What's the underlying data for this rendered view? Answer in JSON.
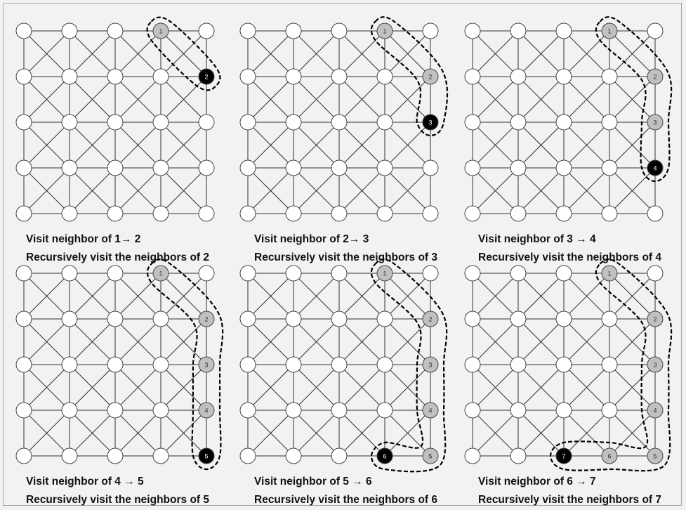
{
  "diagram": {
    "grid": {
      "cols": 5,
      "rows": 5
    },
    "colors": {
      "background": "#f2f2f2",
      "node_unvisited": "#ffffff",
      "node_visited": "#c0c0c0",
      "node_current": "#000000",
      "edge": "#333333",
      "outline": "#000000"
    },
    "panels": [
      {
        "step": 1,
        "caption_line1": "Visit neighbor of 1→ 2",
        "caption_line2": "Recursively visit the neighbors of 2",
        "path": [
          {
            "label": "1",
            "col": 3,
            "row": 0,
            "state": "visited"
          },
          {
            "label": "2",
            "col": 4,
            "row": 1,
            "state": "current"
          }
        ]
      },
      {
        "step": 2,
        "caption_line1": "Visit neighbor of 2→ 3",
        "caption_line2": "Recursively visit the neighbors of 3",
        "path": [
          {
            "label": "1",
            "col": 3,
            "row": 0,
            "state": "visited"
          },
          {
            "label": "2",
            "col": 4,
            "row": 1,
            "state": "visited"
          },
          {
            "label": "3",
            "col": 4,
            "row": 2,
            "state": "current"
          }
        ]
      },
      {
        "step": 3,
        "caption_line1": "Visit neighbor of 3 → 4",
        "caption_line2": "Recursively visit the neighbors of 4",
        "path": [
          {
            "label": "1",
            "col": 3,
            "row": 0,
            "state": "visited"
          },
          {
            "label": "2",
            "col": 4,
            "row": 1,
            "state": "visited"
          },
          {
            "label": "3",
            "col": 4,
            "row": 2,
            "state": "visited"
          },
          {
            "label": "4",
            "col": 4,
            "row": 3,
            "state": "current"
          }
        ]
      },
      {
        "step": 4,
        "caption_line1": "Visit neighbor of 4 → 5",
        "caption_line2": "Recursively visit the neighbors of 5",
        "path": [
          {
            "label": "1",
            "col": 3,
            "row": 0,
            "state": "visited"
          },
          {
            "label": "2",
            "col": 4,
            "row": 1,
            "state": "visited"
          },
          {
            "label": "3",
            "col": 4,
            "row": 2,
            "state": "visited"
          },
          {
            "label": "4",
            "col": 4,
            "row": 3,
            "state": "visited"
          },
          {
            "label": "5",
            "col": 4,
            "row": 4,
            "state": "current"
          }
        ]
      },
      {
        "step": 5,
        "caption_line1": "Visit neighbor of 5 → 6",
        "caption_line2": "Recursively visit the neighbors of 6",
        "path": [
          {
            "label": "1",
            "col": 3,
            "row": 0,
            "state": "visited"
          },
          {
            "label": "2",
            "col": 4,
            "row": 1,
            "state": "visited"
          },
          {
            "label": "3",
            "col": 4,
            "row": 2,
            "state": "visited"
          },
          {
            "label": "4",
            "col": 4,
            "row": 3,
            "state": "visited"
          },
          {
            "label": "5",
            "col": 4,
            "row": 4,
            "state": "visited"
          },
          {
            "label": "6",
            "col": 3,
            "row": 4,
            "state": "current"
          }
        ]
      },
      {
        "step": 6,
        "caption_line1": "Visit neighbor of 6 → 7",
        "caption_line2": "Recursively visit the neighbors of 7",
        "path": [
          {
            "label": "1",
            "col": 3,
            "row": 0,
            "state": "visited"
          },
          {
            "label": "2",
            "col": 4,
            "row": 1,
            "state": "visited"
          },
          {
            "label": "3",
            "col": 4,
            "row": 2,
            "state": "visited"
          },
          {
            "label": "4",
            "col": 4,
            "row": 3,
            "state": "visited"
          },
          {
            "label": "5",
            "col": 4,
            "row": 4,
            "state": "visited"
          },
          {
            "label": "6",
            "col": 3,
            "row": 4,
            "state": "visited"
          },
          {
            "label": "7",
            "col": 2,
            "row": 4,
            "state": "current"
          }
        ]
      }
    ]
  }
}
